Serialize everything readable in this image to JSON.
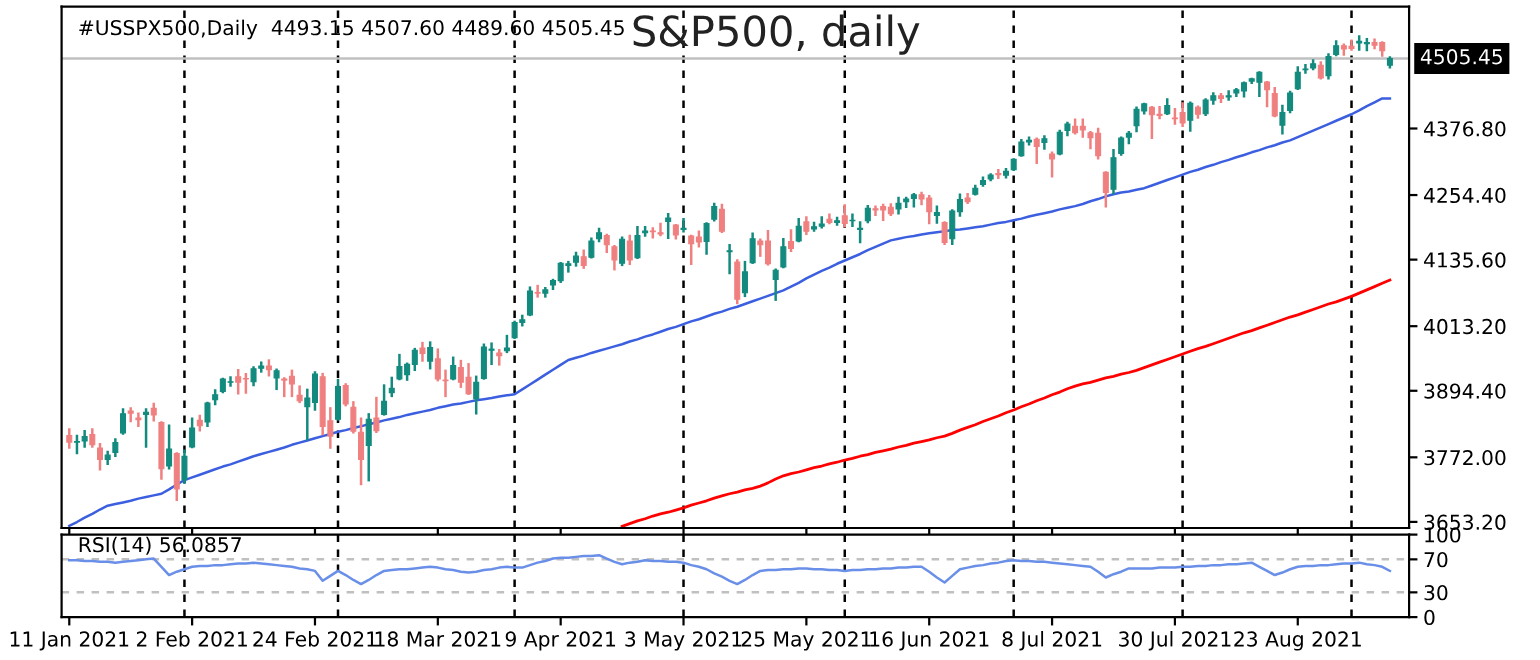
{
  "chart_data": [
    {
      "type": "candlestick",
      "title": "S&P500, daily",
      "annotations": [
        "#USSPX500,Daily  4493.15 4507.60 4489.60 4505.45"
      ],
      "colors": [
        "#f08080",
        "#138a7e",
        "#138a7e",
        "#f08080",
        "#f08080",
        "#138a7e",
        "#138a7e",
        "#138a7e",
        "#f08080",
        "#f08080",
        "#138a7e",
        "#f08080",
        "#f08080",
        "#138a7e",
        "#f08080",
        "#138a7e",
        "#138a7e",
        "#f08080",
        "#138a7e",
        "#138a7e",
        "#138a7e",
        "#138a7e",
        "#f08080",
        "#f08080",
        "#138a7e",
        "#138a7e",
        "#f08080",
        "#138a7e",
        "#f08080",
        "#f08080",
        "#f08080",
        "#138a7e",
        "#138a7e",
        "#f08080",
        "#f08080",
        "#138a7e",
        "#f08080",
        "#f08080",
        "#f08080",
        "#138a7e",
        "#f08080",
        "#138a7e",
        "#138a7e",
        "#138a7e",
        "#138a7e",
        "#138a7e",
        "#f08080",
        "#138a7e",
        "#f08080",
        "#f08080",
        "#138a7e",
        "#f08080",
        "#f08080",
        "#138a7e",
        "#138a7e",
        "#138a7e",
        "#f08080",
        "#138a7e",
        "#138a7e",
        "#138a7e",
        "#138a7e",
        "#f08080",
        "#138a7e",
        "#138a7e",
        "#138a7e",
        "#138a7e",
        "#138a7e",
        "#f08080",
        "#138a7e",
        "#138a7e",
        "#f08080",
        "#f08080",
        "#138a7e",
        "#f08080",
        "#138a7e",
        "#138a7e",
        "#f08080",
        "#f08080",
        "#138a7e",
        "#f08080",
        "#138a7e",
        "#f08080",
        "#f08080",
        "#138a7e",
        "#138a7e",
        "#f08080",
        "#138a7e",
        "#f08080",
        "#138a7e",
        "#138a7e",
        "#f08080",
        "#f08080",
        "#138a7e",
        "#138a7e",
        "#f08080",
        "#138a7e",
        "#f08080",
        "#138a7e",
        "#138a7e",
        "#f08080",
        "#138a7e",
        "#f08080",
        "#138a7e",
        "#138a7e",
        "#138a7e",
        "#f08080",
        "#f08080",
        "#f08080",
        "#138a7e",
        "#138a7e",
        "#138a7e",
        "#f08080",
        "#f08080",
        "#138a7e",
        "#f08080",
        "#138a7e",
        "#138a7e",
        "#f08080",
        "#138a7e",
        "#138a7e",
        "#138a7e",
        "#f08080",
        "#138a7e",
        "#138a7e",
        "#138a7e",
        "#138a7e",
        "#f08080",
        "#138a7e",
        "#f08080",
        "#138a7e",
        "#138a7e",
        "#f08080",
        "#f08080",
        "#f08080",
        "#f08080",
        "#f08080",
        "#138a7e",
        "#138a7e",
        "#138a7e",
        "#138a7e",
        "#138a7e",
        "#f08080",
        "#f08080",
        "#138a7e",
        "#f08080",
        "#f08080",
        "#138a7e",
        "#f08080",
        "#138a7e",
        "#138a7e",
        "#f08080",
        "#138a7e",
        "#138a7e",
        "#138a7e",
        "#138a7e",
        "#138a7e",
        "#f08080",
        "#f08080",
        "#138a7e",
        "#138a7e",
        "#138a7e",
        "#138a7e",
        "#138a7e",
        "#f08080",
        "#138a7e",
        "#138a7e",
        "#f08080",
        "#f08080",
        "#138a7e",
        "#138a7e",
        "#f08080",
        "#f08080",
        "#138a7e"
      ],
      "ohlc": [
        [
          3812,
          3823,
          3790,
          3800
        ],
        [
          3800,
          3811,
          3780,
          3801
        ],
        [
          3802,
          3820,
          3792,
          3810
        ],
        [
          3814,
          3823,
          3792,
          3795
        ],
        [
          3789,
          3796,
          3750,
          3768
        ],
        [
          3768,
          3782,
          3760,
          3776
        ],
        [
          3781,
          3805,
          3775,
          3799
        ],
        [
          3817,
          3860,
          3816,
          3852
        ],
        [
          3857,
          3862,
          3839,
          3853
        ],
        [
          3844,
          3852,
          3830,
          3841
        ],
        [
          3851,
          3860,
          3792,
          3855
        ],
        [
          3862,
          3870,
          3840,
          3850
        ],
        [
          3836,
          3836,
          3733,
          3751
        ],
        [
          3756,
          3830,
          3752,
          3787
        ],
        [
          3779,
          3779,
          3694,
          3714
        ],
        [
          3731,
          3784,
          3725,
          3774
        ],
        [
          3791,
          3843,
          3791,
          3826
        ],
        [
          3840,
          3848,
          3822,
          3830
        ],
        [
          3837,
          3872,
          3830,
          3872
        ],
        [
          3878,
          3895,
          3870,
          3887
        ],
        [
          3893,
          3916,
          3892,
          3916
        ],
        [
          3910,
          3919,
          3904,
          3911
        ],
        [
          3920,
          3932,
          3890,
          3910
        ],
        [
          3917,
          3925,
          3891,
          3916
        ],
        [
          3911,
          3937,
          3905,
          3935
        ],
        [
          3936,
          3946,
          3930,
          3940
        ],
        [
          3940,
          3950,
          3923,
          3933
        ],
        [
          3918,
          3933,
          3898,
          3931
        ],
        [
          3916,
          3917,
          3885,
          3914
        ],
        [
          3921,
          3931,
          3885,
          3907
        ],
        [
          3886,
          3902,
          3874,
          3876
        ],
        [
          3865,
          3896,
          3805,
          3881
        ],
        [
          3873,
          3928,
          3860,
          3925
        ],
        [
          3920,
          3925,
          3815,
          3829
        ],
        [
          3839,
          3862,
          3790,
          3811
        ],
        [
          3842,
          3914,
          3842,
          3902
        ],
        [
          3904,
          3906,
          3868,
          3870
        ],
        [
          3864,
          3873,
          3818,
          3820
        ],
        [
          3818,
          3843,
          3723,
          3768
        ],
        [
          3794,
          3851,
          3730,
          3842
        ],
        [
          3844,
          3881,
          3819,
          3821
        ],
        [
          3851,
          3904,
          3851,
          3875
        ],
        [
          3891,
          3918,
          3885,
          3899
        ],
        [
          3916,
          3960,
          3916,
          3939
        ],
        [
          3924,
          3944,
          3915,
          3943
        ],
        [
          3943,
          3971,
          3933,
          3969
        ],
        [
          3973,
          3982,
          3950,
          3963
        ],
        [
          3949,
          3983,
          3936,
          3974
        ],
        [
          3953,
          3970,
          3914,
          3916
        ],
        [
          3914,
          3931,
          3885,
          3913
        ],
        [
          3916,
          3955,
          3916,
          3941
        ],
        [
          3937,
          3949,
          3902,
          3910
        ],
        [
          3919,
          3943,
          3889,
          3889
        ],
        [
          3880,
          3920,
          3853,
          3910
        ],
        [
          3917,
          3979,
          3917,
          3975
        ],
        [
          3969,
          3981,
          3944,
          3971
        ],
        [
          3964,
          3969,
          3943,
          3959
        ],
        [
          3968,
          3995,
          3966,
          3973
        ],
        [
          3992,
          4021,
          3992,
          4020
        ],
        [
          4020,
          4032,
          4015,
          4025
        ],
        [
          4034,
          4084,
          4034,
          4078
        ],
        [
          4075,
          4087,
          4068,
          4074
        ],
        [
          4074,
          4083,
          4068,
          4080
        ],
        [
          4089,
          4098,
          4082,
          4097
        ],
        [
          4097,
          4129,
          4095,
          4129
        ],
        [
          4125,
          4131,
          4114,
          4128
        ],
        [
          4131,
          4148,
          4125,
          4142
        ],
        [
          4141,
          4152,
          4121,
          4125
        ],
        [
          4140,
          4174,
          4140,
          4170
        ],
        [
          4174,
          4192,
          4170,
          4185
        ],
        [
          4180,
          4181,
          4150,
          4163
        ],
        [
          4159,
          4160,
          4118,
          4135
        ],
        [
          4129,
          4176,
          4126,
          4173
        ],
        [
          4170,
          4179,
          4128,
          4135
        ],
        [
          4139,
          4195,
          4139,
          4180
        ],
        [
          4185,
          4195,
          4180,
          4188
        ],
        [
          4188,
          4193,
          4177,
          4187
        ],
        [
          4185,
          4201,
          4181,
          4183
        ],
        [
          4206,
          4219,
          4176,
          4212
        ],
        [
          4199,
          4199,
          4175,
          4181
        ],
        [
          4191,
          4210,
          4188,
          4193
        ],
        [
          4179,
          4179,
          4128,
          4165
        ],
        [
          4177,
          4187,
          4160,
          4168
        ],
        [
          4169,
          4202,
          4147,
          4202
        ],
        [
          4210,
          4238,
          4208,
          4233
        ],
        [
          4228,
          4236,
          4187,
          4188
        ],
        [
          4150,
          4162,
          4111,
          4152
        ],
        [
          4131,
          4134,
          4056,
          4063
        ],
        [
          4075,
          4131,
          4069,
          4113
        ],
        [
          4130,
          4183,
          4130,
          4174
        ],
        [
          4170,
          4172,
          4143,
          4163
        ],
        [
          4170,
          4188,
          4127,
          4128
        ],
        [
          4099,
          4117,
          4062,
          4116
        ],
        [
          4122,
          4173,
          4122,
          4159
        ],
        [
          4169,
          4189,
          4152,
          4156
        ],
        [
          4170,
          4210,
          4170,
          4197
        ],
        [
          4205,
          4213,
          4183,
          4188
        ],
        [
          4192,
          4203,
          4189,
          4196
        ],
        [
          4197,
          4213,
          4195,
          4201
        ],
        [
          4210,
          4218,
          4203,
          4204
        ],
        [
          4204,
          4212,
          4200,
          4207
        ],
        [
          4216,
          4235,
          4197,
          4202
        ],
        [
          4207,
          4218,
          4198,
          4208
        ],
        [
          4191,
          4204,
          4168,
          4193
        ],
        [
          4207,
          4234,
          4205,
          4230
        ],
        [
          4229,
          4233,
          4218,
          4227
        ],
        [
          4233,
          4236,
          4209,
          4227
        ],
        [
          4232,
          4237,
          4218,
          4220
        ],
        [
          4229,
          4249,
          4221,
          4239
        ],
        [
          4242,
          4249,
          4233,
          4247
        ],
        [
          4248,
          4256,
          4234,
          4255
        ],
        [
          4255,
          4258,
          4238,
          4247
        ],
        [
          4249,
          4252,
          4203,
          4224
        ],
        [
          4217,
          4233,
          4204,
          4222
        ],
        [
          4204,
          4204,
          4165,
          4167
        ],
        [
          4174,
          4226,
          4165,
          4225
        ],
        [
          4224,
          4255,
          4217,
          4246
        ],
        [
          4249,
          4256,
          4240,
          4242
        ],
        [
          4256,
          4271,
          4256,
          4267
        ],
        [
          4274,
          4286,
          4272,
          4281
        ],
        [
          4284,
          4292,
          4282,
          4291
        ],
        [
          4294,
          4300,
          4286,
          4292
        ],
        [
          4291,
          4302,
          4287,
          4298
        ],
        [
          4301,
          4320,
          4301,
          4320
        ],
        [
          4327,
          4355,
          4327,
          4352
        ],
        [
          4352,
          4360,
          4348,
          4355
        ],
        [
          4357,
          4358,
          4314,
          4344
        ],
        [
          4351,
          4362,
          4340,
          4358
        ],
        [
          4330,
          4332,
          4289,
          4321
        ],
        [
          4330,
          4372,
          4330,
          4370
        ],
        [
          4373,
          4387,
          4365,
          4385
        ],
        [
          4381,
          4393,
          4368,
          4369
        ],
        [
          4381,
          4393,
          4362,
          4374
        ],
        [
          4369,
          4370,
          4341,
          4360
        ],
        [
          4368,
          4376,
          4322,
          4327
        ],
        [
          4296,
          4296,
          4234,
          4259
        ],
        [
          4265,
          4337,
          4258,
          4323
        ],
        [
          4331,
          4360,
          4329,
          4359
        ],
        [
          4361,
          4370,
          4350,
          4368
        ],
        [
          4382,
          4415,
          4372,
          4412
        ],
        [
          4409,
          4422,
          4405,
          4422
        ],
        [
          4416,
          4416,
          4360,
          4402
        ],
        [
          4403,
          4416,
          4396,
          4401
        ],
        [
          4404,
          4430,
          4404,
          4419
        ],
        [
          4396,
          4412,
          4386,
          4395
        ],
        [
          4406,
          4423,
          4382,
          4387
        ],
        [
          4392,
          4424,
          4373,
          4423
        ],
        [
          4416,
          4417,
          4397,
          4403
        ],
        [
          4404,
          4430,
          4402,
          4429
        ],
        [
          4429,
          4441,
          4423,
          4437
        ],
        [
          4437,
          4440,
          4426,
          4432
        ],
        [
          4435,
          4445,
          4430,
          4437
        ],
        [
          4442,
          4449,
          4437,
          4448
        ],
        [
          4446,
          4461,
          4436,
          4461
        ],
        [
          4464,
          4468,
          4461,
          4468
        ],
        [
          4462,
          4480,
          4437,
          4480
        ],
        [
          4462,
          4462,
          4418,
          4448
        ],
        [
          4441,
          4451,
          4400,
          4400
        ],
        [
          4383,
          4418,
          4368,
          4406
        ],
        [
          4410,
          4444,
          4407,
          4442
        ],
        [
          4450,
          4489,
          4450,
          4480
        ],
        [
          4485,
          4493,
          4480,
          4486
        ],
        [
          4488,
          4502,
          4486,
          4496
        ],
        [
          4493,
          4498,
          4469,
          4470
        ],
        [
          4474,
          4513,
          4469,
          4509
        ],
        [
          4513,
          4537,
          4512,
          4529
        ],
        [
          4529,
          4531,
          4513,
          4523
        ],
        [
          4528,
          4538,
          4522,
          4524
        ],
        [
          4534,
          4546,
          4522,
          4537
        ],
        [
          4533,
          4541,
          4521,
          4535
        ],
        [
          4535,
          4540,
          4525,
          4530
        ],
        [
          4535,
          4535,
          4511,
          4520
        ],
        [
          4493.15,
          4507.6,
          4489.6,
          4505.45
        ]
      ],
      "series": [
        {
          "type": "line",
          "color": "#3c5fe0",
          "values": [
            3646,
            3653,
            3661,
            3668,
            3676,
            3683,
            3686,
            3689,
            3692,
            3696,
            3699,
            3702,
            3705,
            3713,
            3722,
            3730,
            3735,
            3740,
            3745,
            3750,
            3755,
            3759,
            3764,
            3769,
            3774,
            3778,
            3782,
            3786,
            3790,
            3795,
            3799,
            3803,
            3807,
            3811,
            3815,
            3819,
            3822,
            3826,
            3829,
            3833,
            3836,
            3840,
            3843,
            3846,
            3850,
            3853,
            3856,
            3859,
            3863,
            3866,
            3869,
            3871,
            3874,
            3877,
            3879,
            3881,
            3884,
            3886,
            3888,
            3897,
            3906,
            3915,
            3924,
            3933,
            3942,
            3951,
            3955,
            3959,
            3964,
            3968,
            3972,
            3976,
            3980,
            3985,
            3989,
            3994,
            3998,
            4003,
            4008,
            4012,
            4017,
            4022,
            4026,
            4031,
            4036,
            4040,
            4045,
            4049,
            4054,
            4059,
            4064,
            4069,
            4074,
            4079,
            4086,
            4093,
            4101,
            4108,
            4115,
            4121,
            4128,
            4134,
            4140,
            4146,
            4153,
            4159,
            4165,
            4171,
            4174,
            4177,
            4179,
            4182,
            4184,
            4186,
            4188,
            4190,
            4191,
            4193,
            4195,
            4197,
            4200,
            4203,
            4205,
            4208,
            4211,
            4215,
            4218,
            4221,
            4224,
            4228,
            4231,
            4234,
            4238,
            4243,
            4247,
            4252,
            4256,
            4259,
            4261,
            4264,
            4267,
            4272,
            4277,
            4282,
            4287,
            4292,
            4297,
            4301,
            4306,
            4310,
            4315,
            4319,
            4324,
            4328,
            4333,
            4337,
            4342,
            4346,
            4351,
            4355,
            4361,
            4367,
            4373,
            4379,
            4385,
            4391,
            4397,
            4403,
            4410,
            4418,
            4425,
            4432,
            4432
          ]
        },
        {
          "type": "line",
          "color": "#ff0000",
          "values": [
            null,
            null,
            null,
            null,
            null,
            null,
            null,
            null,
            null,
            null,
            null,
            null,
            null,
            null,
            null,
            null,
            null,
            null,
            null,
            null,
            null,
            null,
            null,
            null,
            null,
            null,
            null,
            null,
            null,
            null,
            null,
            null,
            null,
            null,
            null,
            null,
            null,
            null,
            null,
            null,
            null,
            null,
            null,
            null,
            null,
            null,
            null,
            null,
            null,
            null,
            null,
            null,
            null,
            null,
            null,
            null,
            null,
            null,
            null,
            null,
            null,
            null,
            null,
            null,
            null,
            null,
            null,
            null,
            null,
            null,
            null,
            null,
            3645,
            3650,
            3655,
            3659,
            3664,
            3668,
            3671,
            3675,
            3679,
            3684,
            3688,
            3692,
            3697,
            3701,
            3705,
            3708,
            3712,
            3715,
            3719,
            3725,
            3732,
            3738,
            3742,
            3745,
            3749,
            3753,
            3756,
            3760,
            3763,
            3767,
            3770,
            3774,
            3777,
            3781,
            3784,
            3787,
            3791,
            3794,
            3798,
            3801,
            3804,
            3808,
            3811,
            3816,
            3822,
            3827,
            3832,
            3838,
            3843,
            3848,
            3854,
            3859,
            3865,
            3870,
            3876,
            3881,
            3887,
            3892,
            3898,
            3903,
            3907,
            3910,
            3914,
            3918,
            3921,
            3925,
            3928,
            3932,
            3937,
            3942,
            3947,
            3952,
            3957,
            3962,
            3967,
            3972,
            3976,
            3981,
            3986,
            3991,
            3996,
            4001,
            4005,
            4010,
            4015,
            4020,
            4025,
            4030,
            4034,
            4039,
            4044,
            4049,
            4054,
            4058,
            4063,
            4068,
            4074,
            4080,
            4086,
            4092,
            4098
          ]
        }
      ],
      "ylim": [
        3642,
        4601
      ],
      "yticks": [
        {
          "value": 3653.2,
          "label": "3653.20"
        },
        {
          "value": 3772,
          "label": "3772.00"
        },
        {
          "value": 3894.4,
          "label": "3894.40"
        },
        {
          "value": 4013.2,
          "label": "4013.20"
        },
        {
          "value": 4135.6,
          "label": "4135.60"
        },
        {
          "value": 4254.4,
          "label": "4254.40"
        },
        {
          "value": 4376.8,
          "label": "4376.80"
        }
      ],
      "tick_labels": "y",
      "ref_lines": [
        {
          "axis": "y",
          "value": 4505.45,
          "label": "4505.45",
          "color": "#c0c0c0",
          "line_style": "solid"
        }
      ]
    },
    {
      "type": "line",
      "annotations": [
        "RSI(14) 56.0857"
      ],
      "categories": [
        "11 Jan 2021",
        null,
        null,
        null,
        null,
        null,
        null,
        null,
        null,
        null,
        null,
        null,
        null,
        null,
        null,
        null,
        "2 Feb 2021",
        null,
        null,
        null,
        null,
        null,
        null,
        null,
        null,
        null,
        null,
        null,
        null,
        null,
        null,
        null,
        "24 Feb 2021",
        null,
        null,
        null,
        null,
        null,
        null,
        null,
        null,
        null,
        null,
        null,
        null,
        null,
        null,
        null,
        "18 Mar 2021",
        null,
        null,
        null,
        null,
        null,
        null,
        null,
        null,
        null,
        null,
        null,
        null,
        null,
        null,
        null,
        "9 Apr 2021",
        null,
        null,
        null,
        null,
        null,
        null,
        null,
        null,
        null,
        null,
        null,
        null,
        null,
        null,
        null,
        "3 May 2021",
        null,
        null,
        null,
        null,
        null,
        null,
        null,
        null,
        null,
        null,
        null,
        null,
        null,
        null,
        null,
        "25 May 2021",
        null,
        null,
        null,
        null,
        null,
        null,
        null,
        null,
        null,
        null,
        null,
        null,
        null,
        null,
        null,
        "16 Jun 2021",
        null,
        null,
        null,
        null,
        null,
        null,
        null,
        null,
        null,
        null,
        null,
        null,
        null,
        null,
        null,
        "8 Jul 2021",
        null,
        null,
        null,
        null,
        null,
        null,
        null,
        null,
        null,
        null,
        null,
        null,
        null,
        null,
        null,
        "30 Jul 2021",
        null,
        null,
        null,
        null,
        null,
        null,
        null,
        null,
        null,
        null,
        null,
        null,
        null,
        null,
        null,
        "23 Aug 2021",
        null,
        null,
        null,
        null,
        null,
        null,
        null,
        null,
        null,
        null,
        null,
        null
      ],
      "series": [
        {
          "color": "#6a8fe8",
          "values": [
            69,
            69,
            68,
            68,
            67,
            67,
            66,
            67,
            68,
            69,
            70,
            71,
            61,
            51,
            55,
            58,
            61,
            62,
            62,
            63,
            63,
            64,
            65,
            65,
            66,
            65,
            64,
            63,
            62,
            61,
            59,
            58,
            56,
            44,
            50,
            56,
            51,
            45,
            40,
            45,
            51,
            56,
            57,
            58,
            58,
            59,
            60,
            61,
            60,
            58,
            57,
            55,
            54,
            55,
            57,
            58,
            60,
            61,
            60,
            60,
            63,
            66,
            68,
            71,
            72,
            72,
            73,
            74,
            74,
            75,
            71,
            67,
            64,
            66,
            67,
            69,
            68,
            68,
            67,
            67,
            66,
            63,
            61,
            58,
            53,
            49,
            44,
            40,
            45,
            51,
            56,
            57,
            57,
            58,
            58,
            59,
            59,
            58,
            58,
            57,
            57,
            56,
            57,
            57,
            58,
            58,
            59,
            59,
            60,
            60,
            61,
            61,
            55,
            48,
            42,
            50,
            58,
            60,
            62,
            63,
            65,
            66,
            68,
            69,
            68,
            68,
            67,
            67,
            66,
            65,
            64,
            63,
            62,
            61,
            55,
            48,
            52,
            55,
            59,
            59,
            59,
            59,
            60,
            60,
            60,
            61,
            61,
            62,
            62,
            63,
            63,
            64,
            64,
            65,
            66,
            61,
            56,
            51,
            54,
            58,
            61,
            62,
            62,
            63,
            63,
            64,
            65,
            65,
            66,
            64,
            63,
            61,
            56
          ]
        }
      ],
      "ylim": [
        0,
        100
      ],
      "yticks": [
        0,
        30,
        70,
        100
      ],
      "ref_lines": [
        {
          "axis": "y",
          "value": 70,
          "color": "#c0c0c0",
          "line_style": "dashed"
        },
        {
          "axis": "y",
          "value": 30,
          "color": "#c0c0c0",
          "line_style": "dashed"
        }
      ]
    }
  ]
}
